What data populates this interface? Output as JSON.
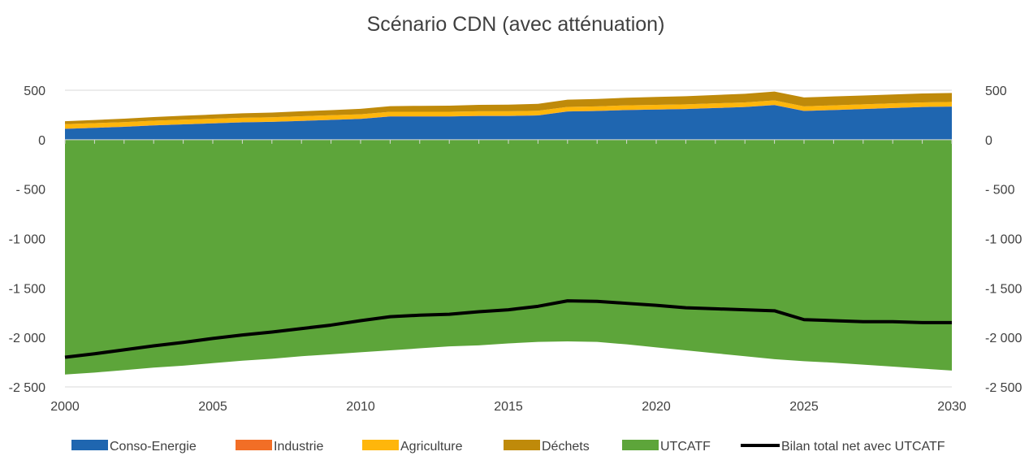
{
  "chart_data": {
    "type": "area",
    "title": "Scénario CDN (avec atténuation)",
    "xlabel": "",
    "ylabel": "",
    "x": [
      2000,
      2001,
      2002,
      2003,
      2004,
      2005,
      2006,
      2007,
      2008,
      2009,
      2010,
      2011,
      2012,
      2013,
      2014,
      2015,
      2016,
      2017,
      2018,
      2019,
      2020,
      2021,
      2022,
      2023,
      2024,
      2025,
      2026,
      2027,
      2028,
      2029,
      2030
    ],
    "x_ticks": [
      2000,
      2005,
      2010,
      2015,
      2020,
      2025,
      2030
    ],
    "xlim": [
      2000,
      2030
    ],
    "ylim": [
      -2500,
      500
    ],
    "y_ticks": [
      500,
      0,
      -500,
      -1000,
      -1500,
      -2000,
      -2500
    ],
    "y_tick_labels": [
      "500",
      "0",
      "- 500",
      "-1 000",
      "-1 500",
      "-2 000",
      "-2 500"
    ],
    "secondary_y_axis": true,
    "grid": "horizontal",
    "legend_position": "bottom",
    "series": [
      {
        "name": "Conso-Energie",
        "kind": "area",
        "color": "#1f66b0",
        "values": [
          110,
          120,
          130,
          145,
          155,
          165,
          175,
          180,
          190,
          200,
          210,
          235,
          235,
          235,
          240,
          240,
          245,
          285,
          290,
          300,
          305,
          310,
          320,
          330,
          350,
          290,
          300,
          310,
          320,
          330,
          335
        ]
      },
      {
        "name": "Industrie",
        "kind": "area",
        "color": "#f26e26",
        "values": [
          2,
          2,
          2,
          2,
          2,
          2,
          2,
          2,
          2,
          2,
          2,
          2,
          2,
          2,
          2,
          2,
          2,
          2,
          2,
          2,
          2,
          2,
          2,
          2,
          2,
          2,
          2,
          2,
          2,
          2,
          2
        ]
      },
      {
        "name": "Agriculture",
        "kind": "area",
        "color": "#ffb60b",
        "values": [
          45,
          45,
          45,
          45,
          45,
          45,
          45,
          45,
          45,
          45,
          45,
          45,
          45,
          45,
          45,
          45,
          45,
          45,
          45,
          45,
          45,
          45,
          45,
          45,
          45,
          45,
          45,
          45,
          45,
          45,
          45
        ]
      },
      {
        "name": "Déchets",
        "kind": "area",
        "color": "#bf8a0a",
        "values": [
          30,
          32,
          35,
          37,
          40,
          42,
          45,
          47,
          50,
          52,
          55,
          57,
          60,
          62,
          65,
          67,
          70,
          72,
          75,
          77,
          80,
          82,
          85,
          87,
          90,
          90,
          90,
          90,
          90,
          90,
          90
        ]
      },
      {
        "name": "UTCATF",
        "kind": "area",
        "color": "#5da53a",
        "values": [
          -2375,
          -2355,
          -2330,
          -2305,
          -2285,
          -2260,
          -2235,
          -2215,
          -2190,
          -2170,
          -2150,
          -2130,
          -2110,
          -2090,
          -2080,
          -2060,
          -2045,
          -2040,
          -2045,
          -2070,
          -2100,
          -2130,
          -2160,
          -2190,
          -2220,
          -2240,
          -2255,
          -2275,
          -2295,
          -2315,
          -2335
        ]
      },
      {
        "name": "Bilan total net avec UTCATF",
        "kind": "line",
        "color": "#000000",
        "values": [
          -2200,
          -2165,
          -2125,
          -2085,
          -2050,
          -2010,
          -1975,
          -1945,
          -1910,
          -1875,
          -1830,
          -1790,
          -1775,
          -1765,
          -1740,
          -1720,
          -1685,
          -1630,
          -1635,
          -1655,
          -1675,
          -1700,
          -1710,
          -1720,
          -1730,
          -1820,
          -1830,
          -1840,
          -1840,
          -1850,
          -1850
        ]
      }
    ]
  }
}
